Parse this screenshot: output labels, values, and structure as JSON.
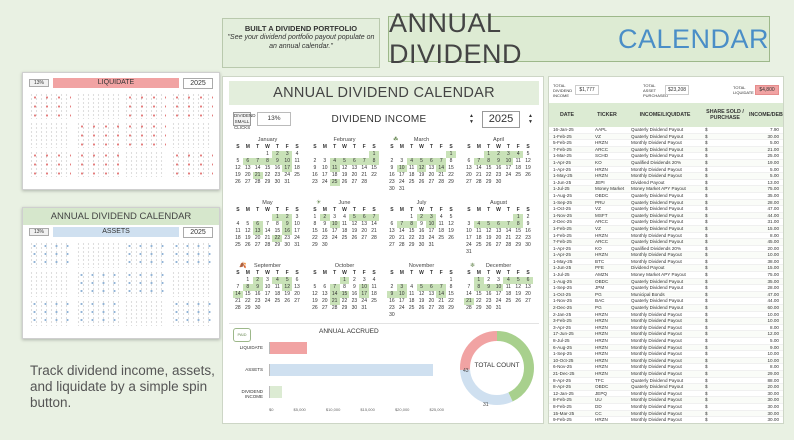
{
  "promo": {
    "title": "BUILT A DIVIDEND PORTFOLIO",
    "subtitle": "\"See your dividend portfolio payout populate on an annual calendar.\""
  },
  "main_title": {
    "prefix": "ANNUAL DIVIDEND",
    "accent": "CALENDAR"
  },
  "preview1": {
    "title": "",
    "pct": "13%",
    "mode": "LIQUIDATE",
    "year": "2025",
    "accent": "#f1a3a3"
  },
  "preview2": {
    "title": "ANNUAL DIVIDEND CALENDAR",
    "pct": "13%",
    "mode": "ASSETS",
    "year": "2025",
    "accent": "#cfe0f0"
  },
  "tagline": "Track dividend income, assets, and liquidate by a simple spin button.",
  "sheet": {
    "title": "ANNUAL DIVIDEND CALENDAR",
    "spin_label": "DIVIDEND SMALL CLICKS",
    "pct": "13%",
    "mode": "DIVIDEND INCOME",
    "year": "2025"
  },
  "weekday_header": [
    "S",
    "M",
    "T",
    "W",
    "T",
    "F",
    "S"
  ],
  "months": [
    {
      "name": "January",
      "icon": "",
      "start": 3,
      "days": 31,
      "on": [
        2,
        3,
        6,
        7,
        8,
        9,
        10,
        17,
        21
      ]
    },
    {
      "name": "February",
      "icon": "",
      "start": 6,
      "days": 28,
      "on": [
        1,
        4,
        5,
        6,
        7,
        8,
        11,
        25
      ]
    },
    {
      "name": "March",
      "icon": "☘",
      "start": 6,
      "days": 31,
      "on": [
        1,
        4,
        5,
        6,
        7,
        10,
        12,
        14
      ]
    },
    {
      "name": "April",
      "icon": "",
      "start": 2,
      "days": 30,
      "on": [
        1,
        2,
        3,
        4,
        7,
        8,
        9,
        10
      ]
    },
    {
      "name": "May",
      "icon": "",
      "start": 4,
      "days": 31,
      "on": [
        1,
        2,
        6,
        9,
        13,
        16,
        22
      ]
    },
    {
      "name": "June",
      "icon": "☀",
      "start": 0,
      "days": 30,
      "on": [
        2,
        5,
        6,
        7,
        10
      ]
    },
    {
      "name": "July",
      "icon": "",
      "start": 2,
      "days": 31,
      "on": [
        2,
        3,
        7,
        8,
        10
      ]
    },
    {
      "name": "August",
      "icon": "",
      "start": 5,
      "days": 31,
      "on": [
        1,
        4,
        5,
        6,
        7,
        8
      ]
    },
    {
      "name": "September",
      "icon": "🍂",
      "start": 1,
      "days": 30,
      "on": [
        2,
        4,
        5,
        8,
        9,
        12,
        14
      ]
    },
    {
      "name": "October",
      "icon": "",
      "start": 3,
      "days": 31,
      "on": [
        1,
        7,
        10,
        14,
        15,
        17,
        21
      ]
    },
    {
      "name": "November",
      "icon": "",
      "start": 6,
      "days": 30,
      "on": [
        3,
        5,
        6,
        7,
        9,
        10,
        14
      ]
    },
    {
      "name": "December",
      "icon": "❄",
      "start": 1,
      "days": 31,
      "on": [
        1,
        4,
        5,
        6,
        8,
        9,
        10,
        21
      ]
    }
  ],
  "accrued": {
    "title": "ANNUAL ACCRUED",
    "logo": "PAID",
    "bars": [
      {
        "label": "LIQUIDATE",
        "value": 5500,
        "color": "#f1a3a3"
      },
      {
        "label": "ASSETS",
        "value": 24000,
        "color": "#cfe0f0"
      },
      {
        "label": "DIVIDEND INCOME",
        "value": 1800,
        "color": "#dcebd3"
      }
    ],
    "max": 25000,
    "ticks": [
      "$0",
      "$5,000",
      "$10,000",
      "$15,000",
      "$20,000",
      "$25,000"
    ]
  },
  "donut": {
    "label": "TOTAL COUNT",
    "segments": [
      {
        "value": 43,
        "color": "#a8d08d"
      },
      {
        "value": 31,
        "color": "#cfe0f0"
      },
      {
        "value": 26,
        "color": "#f1a3a3"
      }
    ],
    "labels": [
      "43",
      "31"
    ]
  },
  "summary": {
    "total_dividend_income_label": "TOTAL DIVIDEND INCOME",
    "total_dividend_income": "$1,777",
    "total_asset_label": "TOTAL ASSET PURCHASED",
    "total_asset": "$23,208",
    "total_liquidate_label": "TOTAL LIQUIDATE",
    "total_liquidate": "$4,800"
  },
  "table": {
    "headers": [
      "DATE",
      "TICKER",
      "INCOME/LIQUIDATE",
      "SHARE SOLD / PURCHASE",
      "INCOME/DEBT"
    ],
    "rows": [
      [
        "16-Jan-25",
        "AAPL",
        "Quaterly Dividend Payout",
        "$",
        "7.90"
      ],
      [
        "1-Feb-25",
        "VZ",
        "Quaterly Dividend Payout",
        "$",
        "30.00"
      ],
      [
        "5-Feb-25",
        "HRZN",
        "Monthly Dividend Payout",
        "$",
        "5.00"
      ],
      [
        "7-Feb-25",
        "ARCC",
        "Quaterly Dividend Payout",
        "$",
        "21.00"
      ],
      [
        "1-Mar-25",
        "SCHD",
        "Quaterly Dividend Payout",
        "$",
        "25.00"
      ],
      [
        "1-Apr-25",
        "KO",
        "Qualified Dividends 20%",
        "$",
        "19.00"
      ],
      [
        "1-Apr-25",
        "HRZN",
        "Monthly Dividend Payout",
        "$",
        "5.00"
      ],
      [
        "1-May-25",
        "HRZN",
        "Monthly Dividend Payout",
        "$",
        "5.00"
      ],
      [
        "1-Jun-25",
        "JEPI",
        "Dividend Payout",
        "$",
        "13.00"
      ],
      [
        "1-Jul-25",
        "Money Market",
        "Money Market APY Payout",
        "$",
        "75.00"
      ],
      [
        "1-Aug-25",
        "OBDC",
        "Quaterly Dividend Payout",
        "$",
        "35.00"
      ],
      [
        "1-Sep-25",
        "PRU",
        "Quaterly Dividend Payout",
        "$",
        "28.00"
      ],
      [
        "1-Oct-25",
        "VZ",
        "Quaterly Dividend Payout",
        "$",
        "47.00"
      ],
      [
        "1-Nov-25",
        "MSFT",
        "Quaterly Dividend Payout",
        "$",
        "44.00"
      ],
      [
        "2-Dec-25",
        "ARCC",
        "Quaterly Dividend Payout",
        "$",
        "31.00"
      ],
      [
        "1-Feb-25",
        "VZ",
        "Quaterly Dividend Payout",
        "$",
        "15.00"
      ],
      [
        "1-Feb-25",
        "HRZN",
        "Monthly Dividend Payout",
        "$",
        "8.00"
      ],
      [
        "7-Feb-25",
        "ARCC",
        "Quaterly Dividend Payout",
        "$",
        "45.00"
      ],
      [
        "1-Apr-25",
        "KO",
        "Qualified Dividends 20%",
        "$",
        "20.00"
      ],
      [
        "1-Apr-25",
        "HRZN",
        "Monthly Dividend Payout",
        "$",
        "10.00"
      ],
      [
        "1-May-25",
        "BTC",
        "Monthly Dividend Payout",
        "$",
        "38.00"
      ],
      [
        "1-Jun-25",
        "PFE",
        "Dividend Payout",
        "$",
        "15.00"
      ],
      [
        "1-Jul-25",
        "AMZN",
        "Money Market APY Payout",
        "$",
        "75.00"
      ],
      [
        "1-Aug-25",
        "OBDC",
        "Quaterly Dividend Payout",
        "$",
        "35.00"
      ],
      [
        "1-Sep-25",
        "JPM",
        "Quaterly Dividend Payout",
        "$",
        "28.00"
      ],
      [
        "1-Oct-25",
        "PG",
        "Municipal Bonds",
        "$",
        "47.00"
      ],
      [
        "1-Nov-25",
        "BAC",
        "Quaterly Dividend Payout",
        "$",
        "44.00"
      ],
      [
        "2-Dec-25",
        "PG",
        "Quaterly Dividend Payout",
        "$",
        "60.00"
      ],
      [
        "2-Jan-25",
        "HRZN",
        "Monthly Dividend Payout",
        "$",
        "10.00"
      ],
      [
        "3-Feb-25",
        "HRZN",
        "Monthly Dividend Payout",
        "$",
        "10.00"
      ],
      [
        "3-Apr-25",
        "HRZN",
        "Monthly Dividend Payout",
        "$",
        "8.00"
      ],
      [
        "17-Jun-25",
        "HRZN",
        "Monthly Dividend Payout",
        "$",
        "12.00"
      ],
      [
        "8-Jul-25",
        "HRZN",
        "Monthly Dividend Payout",
        "$",
        "5.00"
      ],
      [
        "6-Aug-25",
        "HRZN",
        "Monthly Dividend Payout",
        "$",
        "9.00"
      ],
      [
        "1-Sep-25",
        "HRZN",
        "Monthly Dividend Payout",
        "$",
        "10.00"
      ],
      [
        "10-Oct-25",
        "HRZN",
        "Monthly Dividend Payout",
        "$",
        "10.00"
      ],
      [
        "6-Nov-25",
        "HRZN",
        "Monthly Dividend Payout",
        "$",
        "8.00"
      ],
      [
        "21-Dec-25",
        "HRZN",
        "Monthly Dividend Payout",
        "$",
        "29.00"
      ],
      [
        "8-Apr-25",
        "TFC",
        "Quaterly Dividend Payout",
        "$",
        "88.00"
      ],
      [
        "8-Apr-25",
        "OBDC",
        "Quaterly Dividend Payout",
        "$",
        "20.00"
      ],
      [
        "12-Jan-25",
        "JEPQ",
        "Monthly Dividend Payout",
        "$",
        "30.00"
      ],
      [
        "8-Feb-25",
        "UU",
        "Monthly Dividend Payout",
        "$",
        "30.00"
      ],
      [
        "8-Feb-25",
        "DD",
        "Monthly Dividend Payout",
        "$",
        "30.00"
      ],
      [
        "15-Mar-25",
        "CC",
        "Monthly Dividend Payout",
        "$",
        "30.00"
      ],
      [
        "9-Feb-25",
        "HRZN",
        "Monthly Dividend Payout",
        "$",
        "30.00"
      ]
    ]
  }
}
